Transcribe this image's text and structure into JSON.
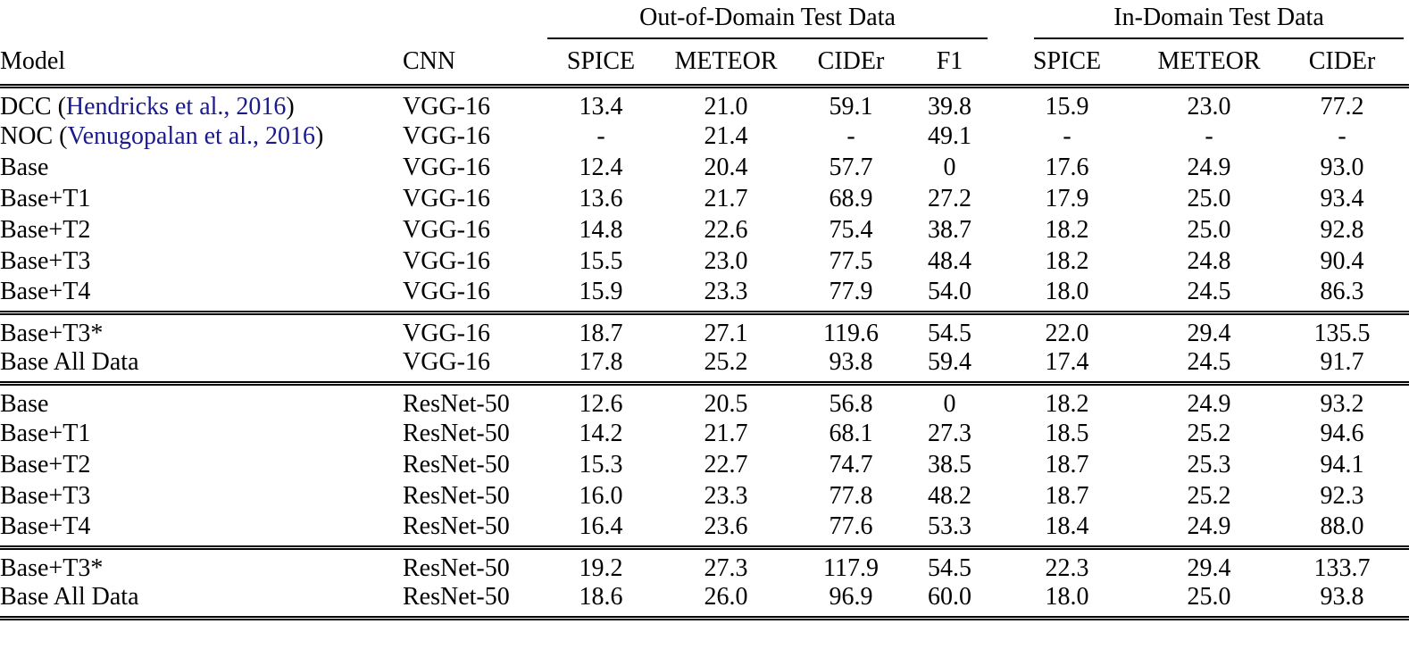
{
  "page": {
    "background": "#ffffff",
    "text_color": "#000000",
    "citation_color": "#1a1a8c"
  },
  "table": {
    "group_headers": [
      {
        "label": "Out-of-Domain Test Data",
        "span_columns": [
          "SPICE",
          "METEOR",
          "CIDEr",
          "F1"
        ]
      },
      {
        "label": "In-Domain Test Data",
        "span_columns": [
          "SPICE",
          "METEOR",
          "CIDEr"
        ]
      }
    ],
    "column_headers": [
      "Model",
      "CNN",
      "SPICE",
      "METEOR",
      "CIDEr",
      "F1",
      "SPICE",
      "METEOR",
      "CIDEr"
    ],
    "blocks": [
      {
        "rows": [
          {
            "model": {
              "before": "DCC (",
              "citation": "Hendricks et al., 2016",
              "after": ")"
            },
            "cnn": "VGG-16",
            "values": [
              "13.4",
              "21.0",
              "59.1",
              "39.8",
              "15.9",
              "23.0",
              "77.2"
            ],
            "bold": []
          },
          {
            "model": {
              "before": "NOC (",
              "citation": "Venugopalan et al., 2016",
              "after": ")"
            },
            "cnn": "VGG-16",
            "values": [
              "-",
              "21.4",
              "-",
              "49.1",
              "-",
              "-",
              "-"
            ],
            "bold": []
          },
          {
            "model": {
              "before": "Base",
              "citation": null,
              "after": ""
            },
            "cnn": "VGG-16",
            "values": [
              "12.4",
              "20.4",
              "57.7",
              "0",
              "17.6",
              "24.9",
              "93.0"
            ],
            "bold": []
          },
          {
            "model": {
              "before": "Base+T1",
              "citation": null,
              "after": ""
            },
            "cnn": "VGG-16",
            "values": [
              "13.6",
              "21.7",
              "68.9",
              "27.2",
              "17.9",
              "25.0",
              "93.4"
            ],
            "bold": [
              5,
              6
            ]
          },
          {
            "model": {
              "before": "Base+T2",
              "citation": null,
              "after": ""
            },
            "cnn": "VGG-16",
            "values": [
              "14.8",
              "22.6",
              "75.4",
              "38.7",
              "18.2",
              "25.0",
              "92.8"
            ],
            "bold": [
              4,
              5
            ]
          },
          {
            "model": {
              "before": "Base+T3",
              "citation": null,
              "after": ""
            },
            "cnn": "VGG-16",
            "values": [
              "15.5",
              "23.0",
              "77.5",
              "48.4",
              "18.2",
              "24.8",
              "90.4"
            ],
            "bold": [
              4
            ]
          },
          {
            "model": {
              "before": "Base+T4",
              "citation": null,
              "after": ""
            },
            "cnn": "VGG-16",
            "values": [
              "15.9",
              "23.3",
              "77.9",
              "54.0",
              "18.0",
              "24.5",
              "86.3"
            ],
            "bold": [
              0,
              1,
              2,
              3
            ]
          }
        ]
      },
      {
        "rows": [
          {
            "model": {
              "before": "Base+T3*",
              "citation": null,
              "after": ""
            },
            "cnn": "VGG-16",
            "values": [
              "18.7",
              "27.1",
              "119.6",
              "54.5",
              "22.0",
              "29.4",
              "135.5"
            ],
            "bold": []
          },
          {
            "model": {
              "before": "Base All Data",
              "citation": null,
              "after": ""
            },
            "cnn": "VGG-16",
            "values": [
              "17.8",
              "25.2",
              "93.8",
              "59.4",
              "17.4",
              "24.5",
              "91.7"
            ],
            "bold": []
          }
        ]
      },
      {
        "rows": [
          {
            "model": {
              "before": "Base",
              "citation": null,
              "after": ""
            },
            "cnn": "ResNet-50",
            "values": [
              "12.6",
              "20.5",
              "56.8",
              "0",
              "18.2",
              "24.9",
              "93.2"
            ],
            "bold": []
          },
          {
            "model": {
              "before": "Base+T1",
              "citation": null,
              "after": ""
            },
            "cnn": "ResNet-50",
            "values": [
              "14.2",
              "21.7",
              "68.1",
              "27.3",
              "18.5",
              "25.2",
              "94.6"
            ],
            "bold": [
              6
            ]
          },
          {
            "model": {
              "before": "Base+T2",
              "citation": null,
              "after": ""
            },
            "cnn": "ResNet-50",
            "values": [
              "15.3",
              "22.7",
              "74.7",
              "38.5",
              "18.7",
              "25.3",
              "94.1"
            ],
            "bold": [
              4,
              5
            ]
          },
          {
            "model": {
              "before": "Base+T3",
              "citation": null,
              "after": ""
            },
            "cnn": "ResNet-50",
            "values": [
              "16.0",
              "23.3",
              "77.8",
              "48.2",
              "18.7",
              "25.2",
              "92.3"
            ],
            "bold": [
              2,
              4
            ]
          },
          {
            "model": {
              "before": "Base+T4",
              "citation": null,
              "after": ""
            },
            "cnn": "ResNet-50",
            "values": [
              "16.4",
              "23.6",
              "77.6",
              "53.3",
              "18.4",
              "24.9",
              "88.0"
            ],
            "bold": [
              0,
              1,
              3
            ]
          }
        ]
      },
      {
        "rows": [
          {
            "model": {
              "before": "Base+T3*",
              "citation": null,
              "after": ""
            },
            "cnn": "ResNet-50",
            "values": [
              "19.2",
              "27.3",
              "117.9",
              "54.5",
              "22.3",
              "29.4",
              "133.7"
            ],
            "bold": []
          },
          {
            "model": {
              "before": "Base All Data",
              "citation": null,
              "after": ""
            },
            "cnn": "ResNet-50",
            "values": [
              "18.6",
              "26.0",
              "96.9",
              "60.0",
              "18.0",
              "25.0",
              "93.8"
            ],
            "bold": []
          }
        ]
      }
    ]
  }
}
